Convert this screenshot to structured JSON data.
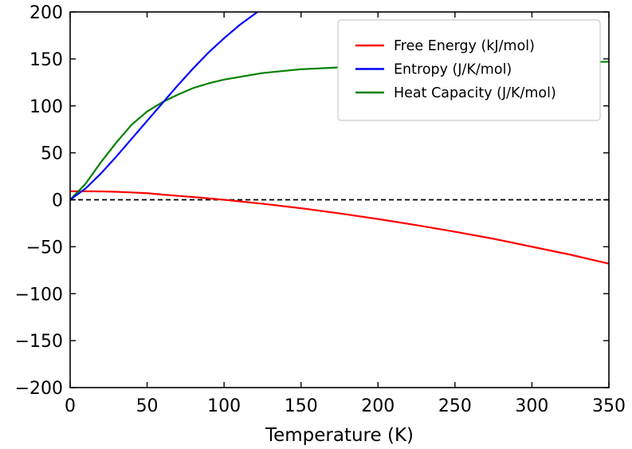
{
  "chart_data": {
    "type": "line",
    "title": "",
    "xlabel": "Temperature (K)",
    "ylabel": "",
    "xlim": [
      0,
      350
    ],
    "ylim": [
      -200,
      200
    ],
    "xticks": [
      0,
      50,
      100,
      150,
      200,
      250,
      300,
      350
    ],
    "yticks": [
      -200,
      -150,
      -100,
      -50,
      0,
      50,
      100,
      150,
      200
    ],
    "xtick_labels": [
      "0",
      "50",
      "100",
      "150",
      "200",
      "250",
      "300",
      "350"
    ],
    "ytick_labels": [
      "−200",
      "−150",
      "−100",
      "−50",
      "0",
      "50",
      "100",
      "150",
      "200"
    ],
    "grid": false,
    "legend_position": "top-right",
    "reference_line": {
      "y": 0,
      "style": "dashed",
      "color": "#000000"
    },
    "series": [
      {
        "name": "Free Energy (kJ/mol)",
        "color": "#ff0000",
        "x": [
          0,
          10,
          20,
          30,
          40,
          50,
          60,
          70,
          80,
          90,
          100,
          125,
          150,
          175,
          200,
          225,
          250,
          275,
          300,
          325,
          350
        ],
        "y": [
          9,
          9,
          8.9,
          8.5,
          7.8,
          7,
          5.5,
          4.2,
          2.9,
          1.5,
          0,
          -4.2,
          -9,
          -14.5,
          -20.5,
          -27,
          -34,
          -41.5,
          -50,
          -58.5,
          -68
        ]
      },
      {
        "name": "Entropy (J/K/mol)",
        "color": "#0000ff",
        "x": [
          0,
          10,
          20,
          30,
          40,
          50,
          60,
          70,
          80,
          90,
          100,
          110,
          120,
          128
        ],
        "y": [
          0,
          12,
          28,
          46,
          65,
          84,
          103,
          122,
          140,
          157,
          172,
          186,
          198,
          208
        ]
      },
      {
        "name": "Heat Capacity (J/K/mol)",
        "color": "#008000",
        "x": [
          0,
          10,
          20,
          30,
          40,
          50,
          60,
          70,
          80,
          90,
          100,
          125,
          150,
          175,
          200,
          250,
          300,
          350
        ],
        "y": [
          0,
          17,
          40,
          61,
          80,
          94,
          104,
          112,
          119,
          124,
          128,
          135,
          139,
          141,
          142,
          144,
          146,
          147
        ]
      }
    ]
  }
}
